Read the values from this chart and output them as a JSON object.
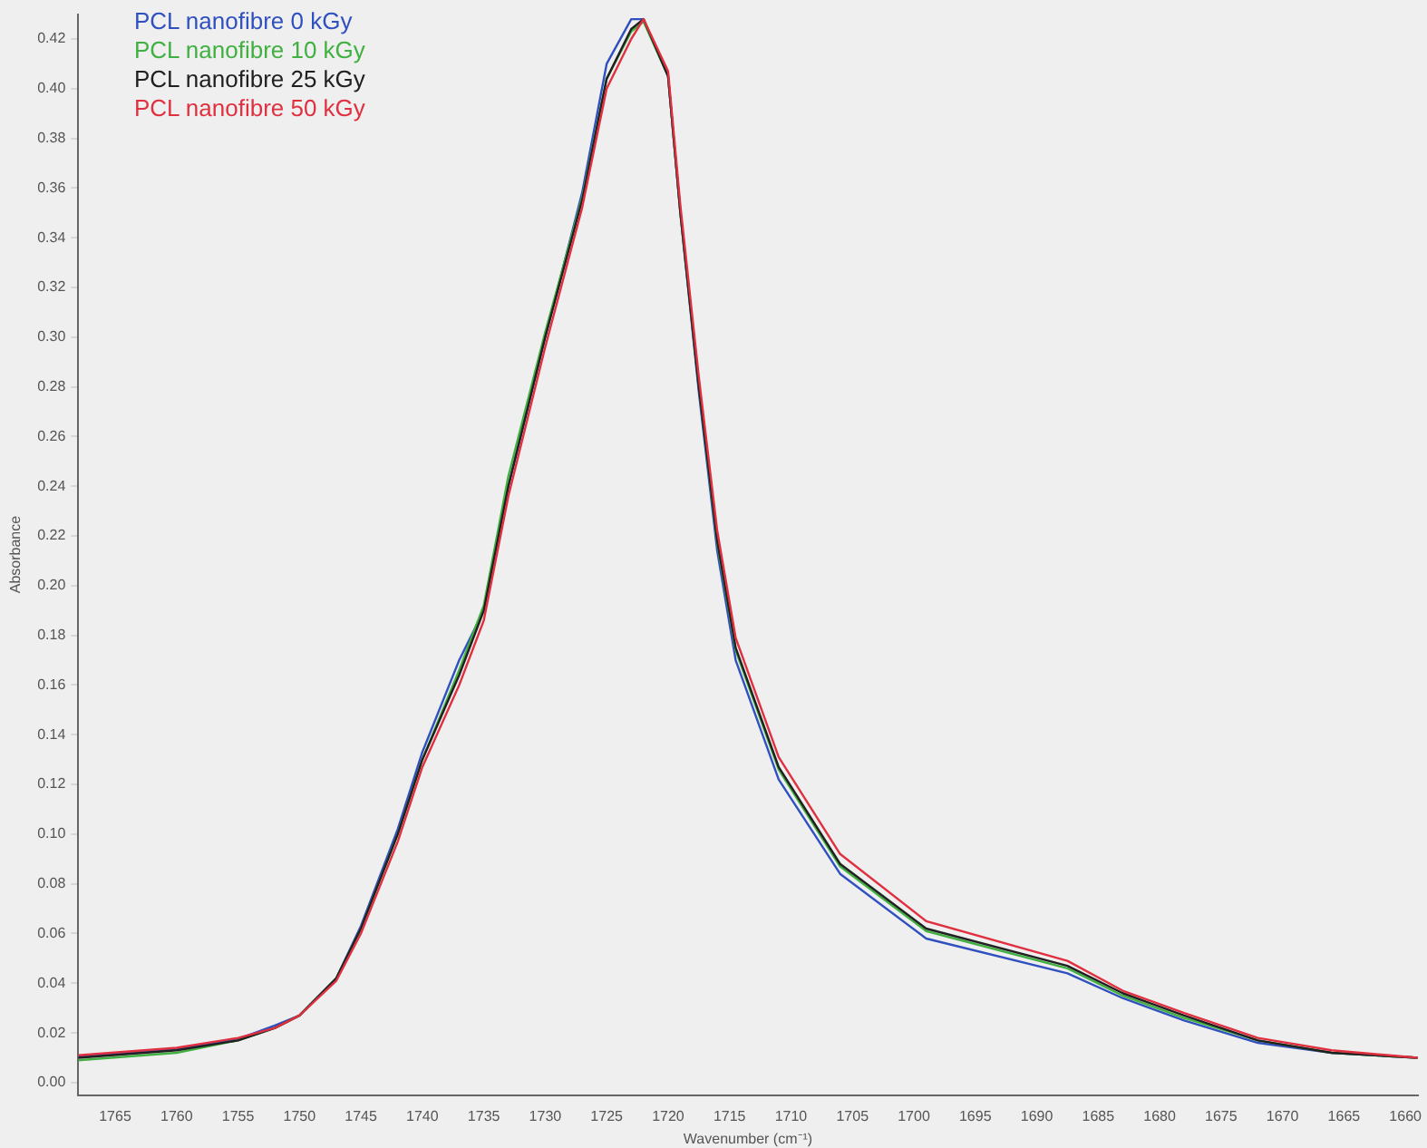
{
  "chart_data": {
    "type": "line",
    "xlabel": "Wavenumber (cm⁻¹)",
    "ylabel": "Absorbance",
    "x": [
      1768,
      1760,
      1755,
      1752,
      1750,
      1747,
      1745,
      1742,
      1740,
      1737,
      1735,
      1733,
      1730,
      1727,
      1725,
      1723,
      1722,
      1720,
      1719,
      1717.5,
      1716,
      1714.5,
      1711,
      1706,
      1699,
      1687.5,
      1683,
      1678,
      1672,
      1666,
      1659
    ],
    "xlim": [
      1768,
      1659
    ],
    "xticks": [
      1765,
      1760,
      1755,
      1750,
      1745,
      1740,
      1735,
      1730,
      1725,
      1720,
      1715,
      1710,
      1705,
      1700,
      1695,
      1690,
      1685,
      1680,
      1675,
      1670,
      1665,
      1660
    ],
    "ylim": [
      -0.005,
      0.43
    ],
    "yticks": [
      {
        "value": 0,
        "label": "0.00"
      },
      {
        "value": 0.02,
        "label": "0.02"
      },
      {
        "value": 0.04,
        "label": "0.04"
      },
      {
        "value": 0.06,
        "label": "0.06"
      },
      {
        "value": 0.08,
        "label": "0.08"
      },
      {
        "value": 0.1,
        "label": "0.10"
      },
      {
        "value": 0.12,
        "label": "0.12"
      },
      {
        "value": 0.14,
        "label": "0.14"
      },
      {
        "value": 0.16,
        "label": "0.16"
      },
      {
        "value": 0.18,
        "label": "0.18"
      },
      {
        "value": 0.2,
        "label": "0.20"
      },
      {
        "value": 0.22,
        "label": "0.22"
      },
      {
        "value": 0.24,
        "label": "0.24"
      },
      {
        "value": 0.26,
        "label": "0.26"
      },
      {
        "value": 0.28,
        "label": "0.28"
      },
      {
        "value": 0.3,
        "label": "0.30"
      },
      {
        "value": 0.32,
        "label": "0.32"
      },
      {
        "value": 0.34,
        "label": "0.34"
      },
      {
        "value": 0.36,
        "label": "0.36"
      },
      {
        "value": 0.38,
        "label": "0.38"
      },
      {
        "value": 0.4,
        "label": "0.40"
      },
      {
        "value": 0.42,
        "label": "0.42"
      }
    ],
    "grid": false,
    "legend": "top left",
    "marker": "none",
    "line_style": "solid",
    "series": [
      {
        "name": "PCL nanofibre 0 kGy",
        "color": "#3050c0",
        "values": [
          0.0105,
          0.0135,
          0.0175,
          0.023,
          0.027,
          0.042,
          0.063,
          0.102,
          0.133,
          0.17,
          0.19,
          0.24,
          0.3,
          0.358,
          0.41,
          0.428,
          0.428,
          0.405,
          0.35,
          0.278,
          0.214,
          0.17,
          0.122,
          0.084,
          0.058,
          0.044,
          0.034,
          0.025,
          0.016,
          0.012,
          0.01
        ]
      },
      {
        "name": "PCL nanofibre 10 kGy",
        "color": "#40b040",
        "values": [
          0.009,
          0.012,
          0.017,
          0.022,
          0.027,
          0.042,
          0.062,
          0.1,
          0.13,
          0.166,
          0.192,
          0.244,
          0.302,
          0.356,
          0.404,
          0.423,
          0.427,
          0.405,
          0.35,
          0.28,
          0.217,
          0.174,
          0.126,
          0.087,
          0.061,
          0.046,
          0.035,
          0.026,
          0.017,
          0.012,
          0.01
        ]
      },
      {
        "name": "PCL nanofibre 25 kGy",
        "color": "#202020",
        "values": [
          0.01,
          0.013,
          0.017,
          0.022,
          0.027,
          0.042,
          0.062,
          0.1,
          0.13,
          0.164,
          0.19,
          0.24,
          0.3,
          0.355,
          0.404,
          0.424,
          0.428,
          0.405,
          0.35,
          0.28,
          0.218,
          0.175,
          0.127,
          0.088,
          0.062,
          0.047,
          0.036,
          0.027,
          0.017,
          0.012,
          0.01
        ]
      },
      {
        "name": "PCL nanofibre 50 kGy",
        "color": "#e03040",
        "values": [
          0.011,
          0.014,
          0.018,
          0.022,
          0.027,
          0.041,
          0.06,
          0.097,
          0.127,
          0.16,
          0.186,
          0.236,
          0.296,
          0.352,
          0.4,
          0.42,
          0.428,
          0.407,
          0.353,
          0.284,
          0.222,
          0.179,
          0.131,
          0.092,
          0.065,
          0.049,
          0.037,
          0.028,
          0.018,
          0.013,
          0.01
        ]
      }
    ]
  }
}
